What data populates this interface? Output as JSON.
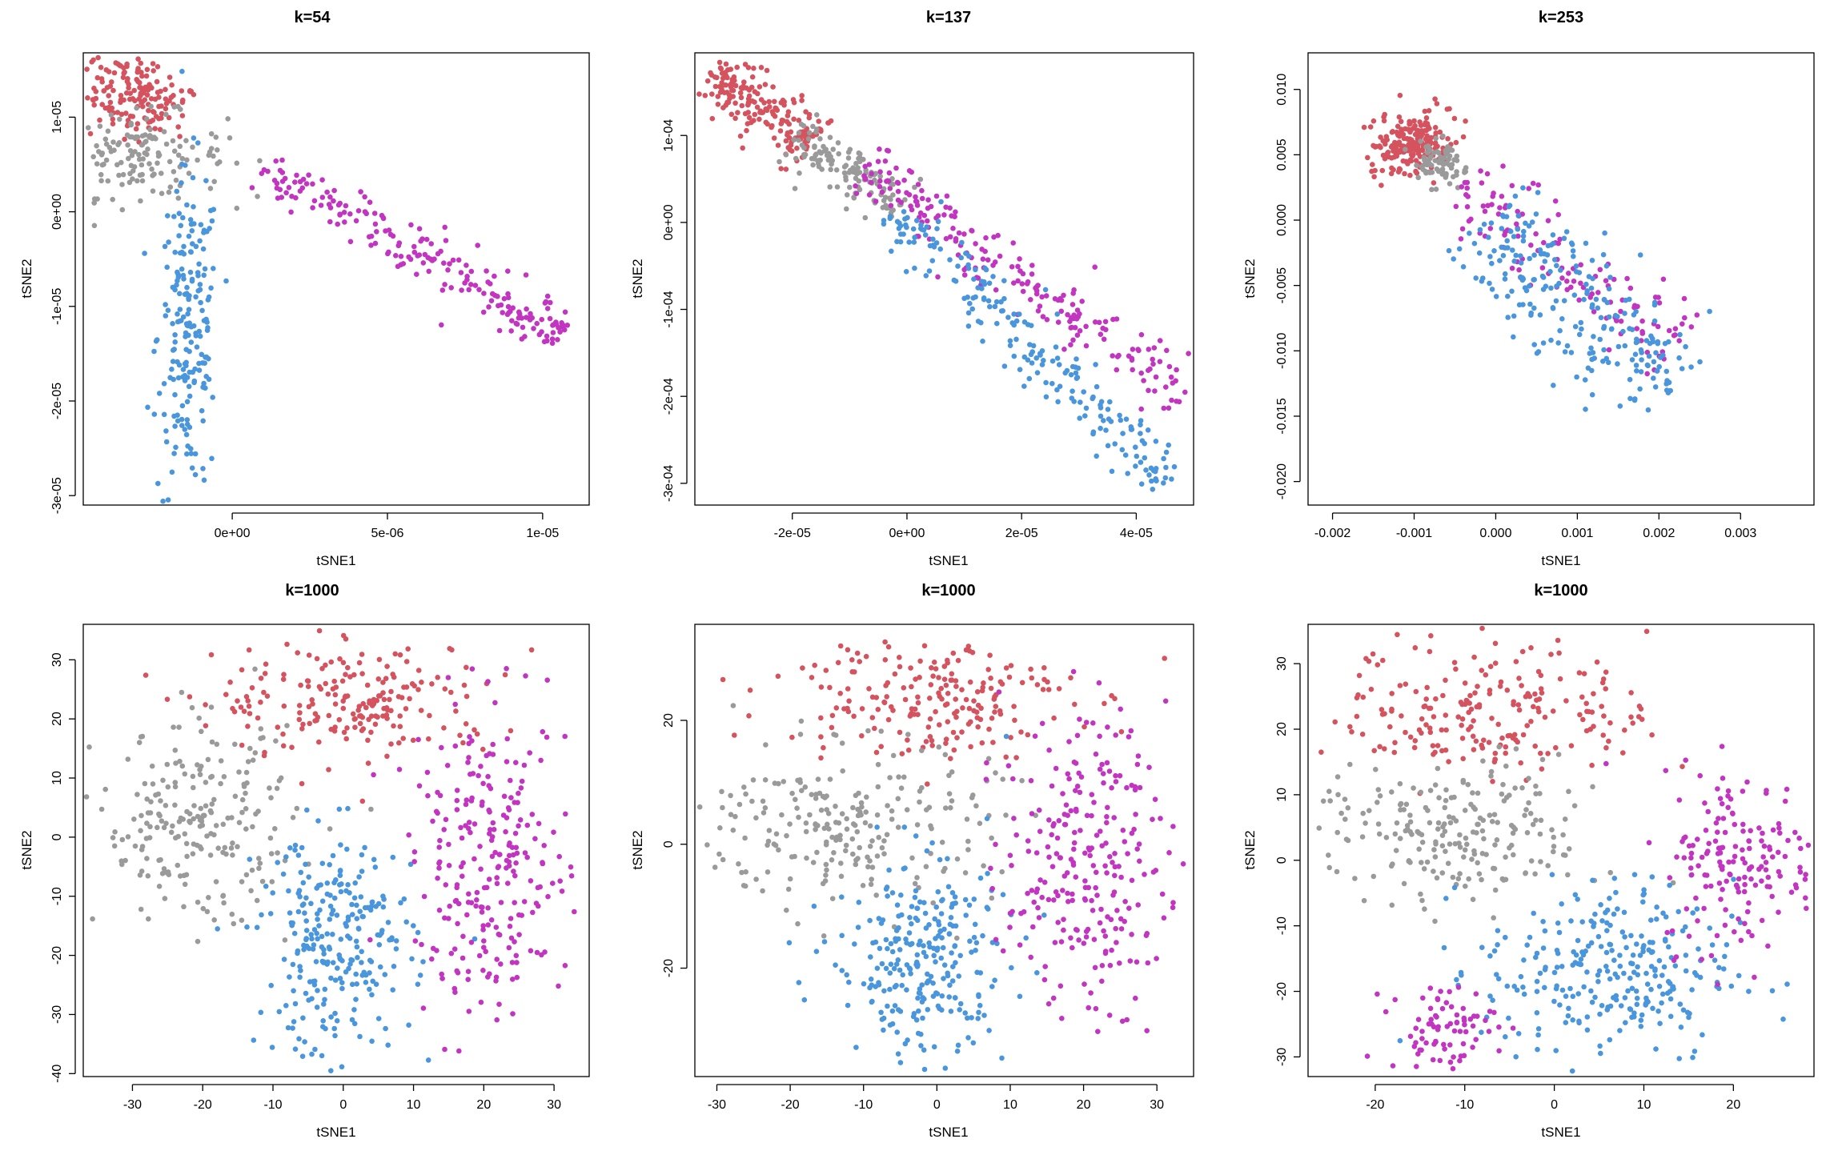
{
  "figure": {
    "colors": {
      "red": "#D4535E",
      "gray": "#9A9A9A",
      "blue": "#4A96DD",
      "magenta": "#C235C0"
    }
  },
  "chart_data": [
    {
      "type": "scatter",
      "title": "k=54",
      "xlabel": "tSNE1",
      "ylabel": "tSNE2",
      "xlim": [
        -4.8e-06,
        1.15e-05
      ],
      "ylim": [
        -3.1e-05,
        1.68e-05
      ],
      "xticks": [
        0,
        5e-06,
        1e-05
      ],
      "xtick_labels": [
        "0e+00",
        "5e-06",
        "1e-05"
      ],
      "yticks": [
        -3e-05,
        -2e-05,
        -1e-05,
        0,
        1e-05
      ],
      "ytick_labels": [
        "-3e-05",
        "-2e-05",
        "-1e-05",
        "0e+00",
        "1e-05"
      ],
      "series": [
        {
          "name": "red",
          "color": "#D4535E",
          "n": 170,
          "shape": "blob",
          "center": [
            -3.2e-06,
            1.25e-05
          ],
          "spread": [
            1e-06,
            2.2e-06
          ],
          "rot": -0.6
        },
        {
          "name": "gray",
          "color": "#9A9A9A",
          "n": 150,
          "shape": "blob",
          "center": [
            -3e-06,
            6e-06
          ],
          "spread": [
            1.4e-06,
            2.2e-06
          ],
          "rot": 0
        },
        {
          "name": "blue",
          "color": "#4A96DD",
          "n": 200,
          "shape": "blob",
          "center": [
            -1.4e-06,
            -1.3e-05
          ],
          "spread": [
            5e-07,
            8.5e-06
          ],
          "rot": 0
        },
        {
          "name": "magenta",
          "color": "#C235C0",
          "n": 200,
          "shape": "line",
          "from": [
            1e-06,
            4.5e-06
          ],
          "to": [
            1.08e-05,
            -1.3e-05
          ],
          "width": 1.8e-06
        }
      ]
    },
    {
      "type": "scatter",
      "title": "k=137",
      "xlabel": "tSNE1",
      "ylabel": "tSNE2",
      "xlim": [
        -3.7e-05,
        5e-05
      ],
      "ylim": [
        -0.000325,
        0.000195
      ],
      "xticks": [
        -2e-05,
        0,
        2e-05,
        4e-05
      ],
      "xtick_labels": [
        "-2e-05",
        "0e+00",
        "2e-05",
        "4e-05"
      ],
      "yticks": [
        -0.0003,
        -0.0002,
        -0.0001,
        0,
        0.0001
      ],
      "ytick_labels": [
        "-3e-04",
        "-2e-04",
        "-1e-04",
        "0e+00",
        "1e-04"
      ],
      "series": [
        {
          "name": "red",
          "color": "#D4535E",
          "n": 190,
          "shape": "line",
          "from": [
            -3.4e-05,
            0.000175
          ],
          "to": [
            -1.6e-05,
            9e-05
          ],
          "width": 1e-05
        },
        {
          "name": "gray",
          "color": "#9A9A9A",
          "n": 130,
          "shape": "line",
          "from": [
            -2e-05,
            0.0001
          ],
          "to": [
            -1e-06,
            2e-05
          ],
          "width": 1e-05
        },
        {
          "name": "magenta",
          "color": "#C235C0",
          "n": 210,
          "shape": "line",
          "from": [
            -8e-06,
            6.5e-05
          ],
          "to": [
            4.9e-05,
            -0.0002
          ],
          "width": 1.1e-05
        },
        {
          "name": "blue",
          "color": "#4A96DD",
          "n": 210,
          "shape": "line",
          "from": [
            -2e-06,
            1.5e-05
          ],
          "to": [
            4.6e-05,
            -0.000305
          ],
          "width": 1.1e-05
        }
      ]
    },
    {
      "type": "scatter",
      "title": "k=253",
      "xlabel": "tSNE1",
      "ylabel": "tSNE2",
      "xlim": [
        -0.0023,
        0.0039
      ],
      "ylim": [
        -0.0218,
        0.0128
      ],
      "xticks": [
        -0.002,
        -0.001,
        0,
        0.001,
        0.002,
        0.003
      ],
      "xtick_labels": [
        "-0.002",
        "-0.001",
        "0.000",
        "0.001",
        "0.002",
        "0.003"
      ],
      "yticks": [
        -0.02,
        -0.015,
        -0.01,
        -0.005,
        0,
        0.005,
        0.01
      ],
      "ytick_labels": [
        "-0.020",
        "-0.015",
        "-0.010",
        "-0.005",
        "0.000",
        "0.005",
        "0.010"
      ],
      "series": [
        {
          "name": "red",
          "color": "#D4535E",
          "n": 200,
          "shape": "blob",
          "center": [
            -0.00105,
            0.0058
          ],
          "spread": [
            0.0002,
            0.0014
          ],
          "rot": -0.9
        },
        {
          "name": "gray",
          "color": "#9A9A9A",
          "n": 80,
          "shape": "blob",
          "center": [
            -0.0007,
            0.0045
          ],
          "spread": [
            0.00015,
            0.0008
          ],
          "rot": -0.9
        },
        {
          "name": "magenta",
          "color": "#C235C0",
          "n": 130,
          "shape": "line",
          "from": [
            -0.0004,
            0.003
          ],
          "to": [
            0.0022,
            -0.01
          ],
          "width": 0.0011
        },
        {
          "name": "blue",
          "color": "#4A96DD",
          "n": 240,
          "shape": "line",
          "from": [
            -0.0002,
            0.0
          ],
          "to": [
            0.0022,
            -0.013
          ],
          "width": 0.0015
        }
      ]
    },
    {
      "type": "scatter",
      "title": "k=1000",
      "xlabel": "tSNE1",
      "ylabel": "tSNE2",
      "xlim": [
        -37,
        35
      ],
      "ylim": [
        -40.5,
        36
      ],
      "xticks": [
        -30,
        -20,
        -10,
        0,
        10,
        20,
        30
      ],
      "xtick_labels": [
        "-30",
        "-20",
        "-10",
        "0",
        "10",
        "20",
        "30"
      ],
      "yticks": [
        -40,
        -30,
        -20,
        -10,
        0,
        10,
        20,
        30
      ],
      "ytick_labels": [
        "-40",
        "-30",
        "-20",
        "-10",
        "0",
        "10",
        "20",
        "30"
      ],
      "series": [
        {
          "name": "red",
          "color": "#D4535E",
          "n": 200,
          "shape": "blob",
          "center": [
            2,
            23
          ],
          "spread": [
            10,
            5
          ],
          "rot": 0
        },
        {
          "name": "gray",
          "color": "#9A9A9A",
          "n": 220,
          "shape": "blob",
          "center": [
            -21,
            2
          ],
          "spread": [
            7,
            8
          ],
          "rot": 0
        },
        {
          "name": "blue",
          "color": "#4A96DD",
          "n": 260,
          "shape": "blob",
          "center": [
            -1,
            -18
          ],
          "spread": [
            5.5,
            9.5
          ],
          "rot": 0
        },
        {
          "name": "magenta",
          "color": "#C235C0",
          "n": 250,
          "shape": "blob",
          "center": [
            21,
            -5
          ],
          "spread": [
            5.5,
            13
          ],
          "rot": 0
        }
      ]
    },
    {
      "type": "scatter",
      "title": "k=1000",
      "xlabel": "tSNE1",
      "ylabel": "tSNE2",
      "xlim": [
        -33,
        35
      ],
      "ylim": [
        -37.5,
        35.5
      ],
      "xticks": [
        -30,
        -20,
        -10,
        0,
        10,
        20,
        30
      ],
      "xtick_labels": [
        "-30",
        "-20",
        "-10",
        "0",
        "10",
        "20",
        "30"
      ],
      "yticks": [
        -20,
        0,
        20
      ],
      "ytick_labels": [
        "-20",
        "0",
        "20"
      ],
      "series": [
        {
          "name": "red",
          "color": "#D4535E",
          "n": 200,
          "shape": "blob",
          "center": [
            -2,
            24
          ],
          "spread": [
            10,
            5
          ],
          "rot": 0
        },
        {
          "name": "gray",
          "color": "#9A9A9A",
          "n": 230,
          "shape": "blob",
          "center": [
            -12,
            3
          ],
          "spread": [
            10,
            6.5
          ],
          "rot": 0
        },
        {
          "name": "blue",
          "color": "#4A96DD",
          "n": 270,
          "shape": "blob",
          "center": [
            -2,
            -19
          ],
          "spread": [
            6,
            8.5
          ],
          "rot": 0
        },
        {
          "name": "magenta",
          "color": "#C235C0",
          "n": 250,
          "shape": "blob",
          "center": [
            20,
            -3
          ],
          "spread": [
            5.5,
            12
          ],
          "rot": 0
        }
      ]
    },
    {
      "type": "scatter",
      "title": "k=1000",
      "xlabel": "tSNE1",
      "ylabel": "tSNE2",
      "xlim": [
        -27.5,
        29
      ],
      "ylim": [
        -33,
        36
      ],
      "xticks": [
        -20,
        -10,
        0,
        10,
        20
      ],
      "xtick_labels": [
        "-20",
        "-10",
        "0",
        "10",
        "20"
      ],
      "yticks": [
        -30,
        -20,
        -10,
        0,
        10,
        20,
        30
      ],
      "ytick_labels": [
        "-30",
        "-20",
        "-10",
        "0",
        "10",
        "20",
        "30"
      ],
      "series": [
        {
          "name": "red",
          "color": "#D4535E",
          "n": 210,
          "shape": "blob",
          "center": [
            -7,
            23
          ],
          "spread": [
            9,
            5
          ],
          "rot": 0
        },
        {
          "name": "gray",
          "color": "#9A9A9A",
          "n": 220,
          "shape": "blob",
          "center": [
            -11,
            4
          ],
          "spread": [
            8,
            5.5
          ],
          "rot": 0
        },
        {
          "name": "blue",
          "color": "#4A96DD",
          "n": 280,
          "shape": "blob",
          "center": [
            6,
            -17
          ],
          "spread": [
            7,
            7
          ],
          "rot": 0
        },
        {
          "name": "magenta",
          "color": "#C235C0",
          "n": 170,
          "shape": "blob",
          "center": [
            21,
            0
          ],
          "spread": [
            4.5,
            7
          ],
          "rot": 0
        },
        {
          "name": "magenta-small",
          "color": "#C235C0",
          "n": 80,
          "shape": "blob",
          "center": [
            -12.5,
            -25.5
          ],
          "spread": [
            3,
            3.3
          ],
          "rot": 0
        }
      ]
    }
  ]
}
